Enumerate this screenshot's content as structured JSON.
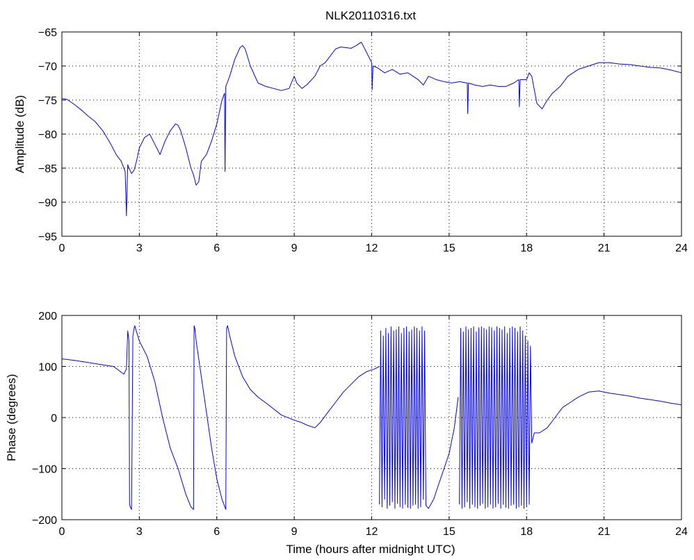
{
  "chart_data": [
    {
      "type": "line",
      "title": "NLK20110316.txt",
      "xlabel": "",
      "ylabel": "Amplitude (dB)",
      "xlim": [
        0,
        24
      ],
      "ylim": [
        -95,
        -65
      ],
      "xticks": [
        "0",
        "3",
        "6",
        "9",
        "12",
        "15",
        "18",
        "21",
        "24"
      ],
      "yticks": [
        "−65",
        "−70",
        "−75",
        "−80",
        "−85",
        "−90",
        "−95"
      ],
      "grid": true,
      "series": [
        {
          "x": [
            0,
            0.2,
            0.5,
            0.8,
            1.0,
            1.3,
            1.6,
            1.9,
            2.1,
            2.3,
            2.45,
            2.5,
            2.55,
            2.6,
            2.7,
            2.8,
            2.9,
            3.0,
            3.2,
            3.4,
            3.6,
            3.8,
            4.0,
            4.2,
            4.4,
            4.5,
            4.6,
            4.8,
            5.0,
            5.1,
            5.2,
            5.3,
            5.4,
            5.6,
            5.8,
            6.0,
            6.2,
            6.3,
            6.32,
            6.35,
            6.4,
            6.5,
            6.7,
            6.9,
            7.0,
            7.1,
            7.3,
            7.6,
            7.9,
            8.2,
            8.5,
            8.8,
            9.0,
            9.1,
            9.3,
            9.5,
            9.8,
            10.0,
            10.2,
            10.4,
            10.6,
            10.8,
            11.0,
            11.2,
            11.4,
            11.6,
            11.8,
            12.0,
            12.02,
            12.05,
            12.2,
            12.5,
            12.8,
            13.1,
            13.4,
            13.6,
            13.8,
            14.0,
            14.2,
            14.5,
            14.8,
            15.1,
            15.4,
            15.7,
            15.72,
            15.75,
            16.0,
            16.3,
            16.6,
            16.9,
            17.2,
            17.5,
            17.7,
            17.72,
            17.75,
            18.0,
            18.1,
            18.2,
            18.4,
            18.6,
            18.8,
            19.0,
            19.3,
            19.6,
            20.0,
            20.4,
            20.8,
            21.2,
            21.6,
            22.0,
            22.4,
            22.8,
            23.2,
            23.6,
            24.0
          ],
          "values": [
            -74.8,
            -74.9,
            -75.7,
            -76.6,
            -77.3,
            -78.2,
            -79.6,
            -81.5,
            -83.0,
            -84.0,
            -85.5,
            -92.0,
            -84.5,
            -85.0,
            -85.8,
            -85.3,
            -83.8,
            -82.0,
            -80.5,
            -80.0,
            -81.5,
            -83.0,
            -81.0,
            -79.5,
            -78.5,
            -78.7,
            -79.5,
            -82.0,
            -85.0,
            -86.0,
            -87.5,
            -87.0,
            -84.0,
            -83.0,
            -81.0,
            -78.5,
            -75.0,
            -74.0,
            -85.5,
            -73.0,
            -72.5,
            -71.5,
            -69.0,
            -67.3,
            -67.0,
            -67.5,
            -70.0,
            -72.5,
            -73.0,
            -73.3,
            -73.6,
            -73.3,
            -71.5,
            -72.5,
            -73.3,
            -72.7,
            -71.5,
            -70.0,
            -69.5,
            -68.5,
            -67.5,
            -67.2,
            -67.3,
            -67.4,
            -67.0,
            -66.5,
            -68.0,
            -69.5,
            -73.5,
            -70.0,
            -70.2,
            -71.0,
            -70.5,
            -71.2,
            -71.0,
            -71.5,
            -72.0,
            -72.8,
            -71.5,
            -72.0,
            -72.3,
            -72.5,
            -72.3,
            -72.5,
            -77.0,
            -72.5,
            -72.8,
            -73.0,
            -72.8,
            -73.0,
            -73.0,
            -72.5,
            -72.0,
            -76.0,
            -72.0,
            -72.0,
            -71.0,
            -71.5,
            -75.5,
            -76.3,
            -75.0,
            -74.0,
            -73.0,
            -71.5,
            -70.5,
            -70.0,
            -69.5,
            -69.5,
            -69.7,
            -69.8,
            -70.0,
            -70.2,
            -70.3,
            -70.6,
            -71.0
          ]
        }
      ]
    },
    {
      "type": "line",
      "title": "",
      "xlabel": "Time (hours after midnight UTC)",
      "ylabel": "Phase (degrees)",
      "xlim": [
        0,
        24
      ],
      "ylim": [
        -200,
        200
      ],
      "xticks": [
        "0",
        "3",
        "6",
        "9",
        "12",
        "15",
        "18",
        "21",
        "24"
      ],
      "yticks": [
        "200",
        "100",
        "0",
        "−100",
        "−200"
      ],
      "grid": true,
      "series": [
        {
          "x": [
            0,
            0.5,
            1.0,
            1.5,
            2.0,
            2.4,
            2.5,
            2.55,
            2.6,
            2.62,
            2.65,
            2.7,
            2.75,
            2.8,
            2.82,
            3.0,
            3.3,
            3.6,
            3.9,
            4.2,
            4.5,
            4.8,
            5.0,
            5.1,
            5.12,
            5.15,
            5.2,
            5.4,
            5.6,
            5.8,
            6.0,
            6.2,
            6.35,
            6.38,
            6.42,
            6.5,
            6.7,
            7.0,
            7.3,
            7.6,
            8.0,
            8.5,
            9.0,
            9.3,
            9.5,
            9.8,
            10.0,
            10.3,
            10.6,
            10.9,
            11.2,
            11.5,
            11.8,
            12.1,
            12.3
          ],
          "values": [
            115,
            112,
            108,
            104,
            100,
            85,
            95,
            170,
            150,
            -170,
            -175,
            -180,
            160,
            175,
            180,
            150,
            120,
            70,
            0,
            -60,
            -100,
            -150,
            -175,
            -180,
            180,
            175,
            150,
            80,
            10,
            -60,
            -120,
            -160,
            -180,
            175,
            180,
            160,
            120,
            80,
            55,
            40,
            25,
            5,
            -5,
            -10,
            -15,
            -20,
            -10,
            10,
            30,
            50,
            65,
            80,
            90,
            95,
            100
          ]
        },
        {
          "x": [
            12.3,
            12.35,
            12.4,
            12.45,
            12.5,
            12.55,
            12.6,
            12.65,
            12.7,
            12.75,
            12.8,
            12.85,
            12.9,
            12.95,
            13.0,
            13.05,
            13.1,
            13.15,
            13.2,
            13.25,
            13.3,
            13.35,
            13.4,
            13.45,
            13.5,
            13.55,
            13.6,
            13.65,
            13.7,
            13.75,
            13.8,
            13.85,
            13.9,
            13.95,
            14.0,
            14.05,
            14.1,
            14.2,
            14.4,
            14.6,
            14.8,
            15.0,
            15.2,
            15.35
          ],
          "values": [
            -170,
            170,
            -175,
            160,
            -160,
            175,
            -178,
            165,
            -172,
            178,
            -165,
            170,
            -178,
            172,
            -168,
            178,
            -175,
            165,
            -178,
            175,
            -170,
            178,
            -176,
            168,
            -178,
            172,
            -172,
            178,
            -170,
            175,
            -178,
            170,
            -175,
            178,
            -160,
            170,
            -172,
            -178,
            -160,
            -130,
            -100,
            -70,
            -20,
            40
          ]
        },
        {
          "x": [
            15.4,
            15.45,
            15.5,
            15.55,
            15.6,
            15.65,
            15.7,
            15.75,
            15.8,
            15.85,
            15.9,
            15.95,
            16.0,
            16.05,
            16.1,
            16.15,
            16.2,
            16.25,
            16.3,
            16.35,
            16.4,
            16.45,
            16.5,
            16.55,
            16.6,
            16.65,
            16.7,
            16.75,
            16.8,
            16.85,
            16.9,
            16.95,
            17.0,
            17.05,
            17.1,
            17.15,
            17.2,
            17.25,
            17.3,
            17.35,
            17.4,
            17.45,
            17.5,
            17.55,
            17.6,
            17.65,
            17.7,
            17.75,
            17.8,
            17.85,
            17.9,
            17.95,
            18.0,
            18.05,
            18.1,
            18.15,
            18.2,
            18.3,
            18.5,
            18.8,
            19.1,
            19.4,
            19.7,
            20.0,
            20.4,
            20.8,
            21.2,
            21.6,
            22.0,
            22.4,
            22.8,
            23.2,
            23.6,
            24.0
          ],
          "values": [
            -170,
            175,
            -178,
            168,
            -175,
            178,
            -165,
            172,
            -178,
            175,
            -170,
            178,
            -175,
            168,
            -178,
            176,
            -172,
            178,
            -168,
            175,
            -178,
            172,
            -175,
            178,
            -170,
            176,
            -178,
            170,
            -175,
            178,
            -168,
            175,
            -178,
            172,
            -170,
            178,
            -176,
            165,
            -178,
            175,
            -172,
            178,
            -170,
            175,
            -178,
            168,
            -175,
            178,
            -172,
            170,
            -178,
            160,
            -175,
            150,
            -170,
            140,
            -50,
            -30,
            -30,
            -20,
            0,
            20,
            30,
            40,
            50,
            52,
            48,
            45,
            42,
            38,
            35,
            32,
            28,
            25
          ]
        }
      ]
    }
  ]
}
